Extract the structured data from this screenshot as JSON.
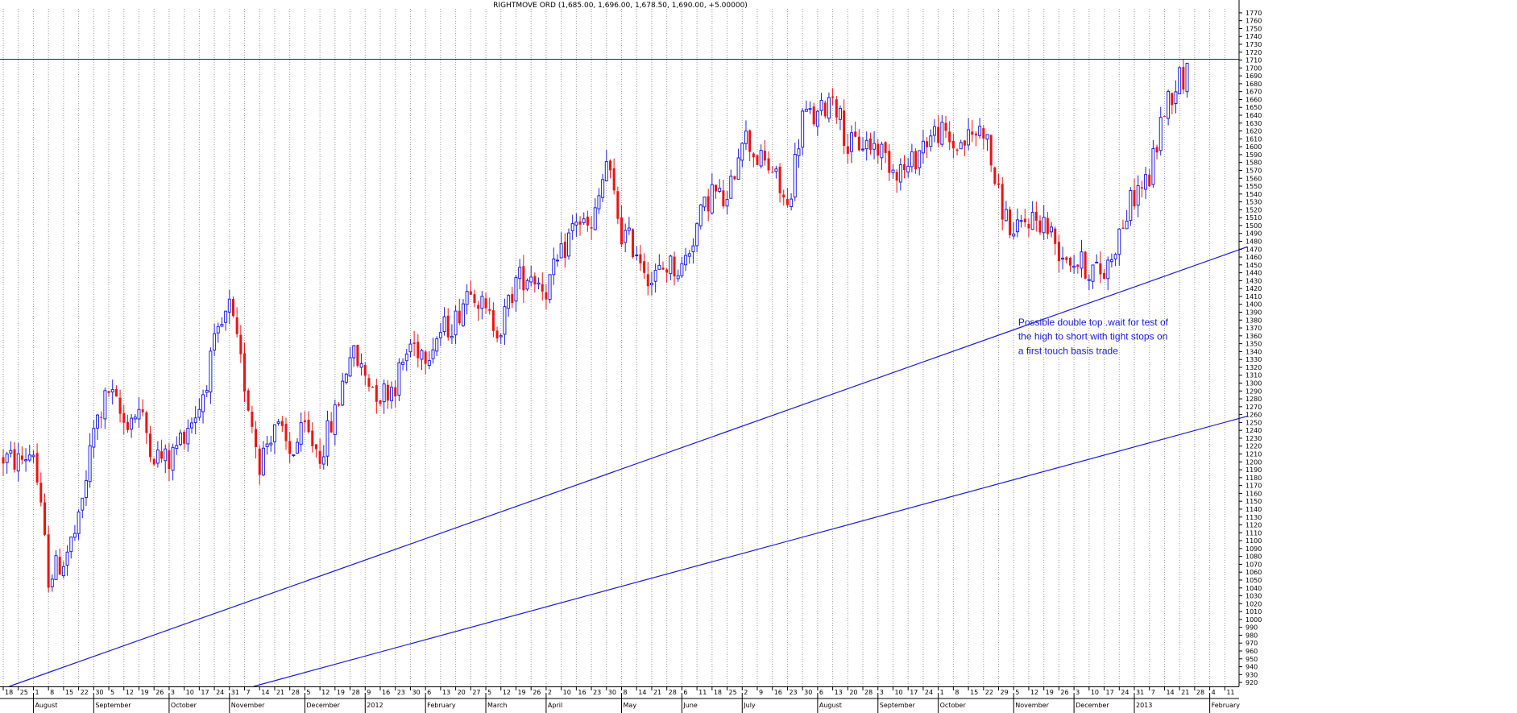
{
  "chart_data": {
    "type": "candlestick",
    "title": "RIGHTMOVE ORD (1,685.00, 1,696.00, 1,678.50, 1,690.00, +5.00000)",
    "ylim": [
      915,
      1775
    ],
    "ytick_step": 10,
    "grid": "vertical-dotted",
    "colors": {
      "up": "#1f1fe0",
      "down": "#ee1111",
      "line": "#1a1ad8",
      "axis": "#000000"
    },
    "x_ticks": [
      "18",
      "25",
      "1",
      "8",
      "15",
      "22",
      "30",
      "5",
      "12",
      "19",
      "26",
      "3",
      "10",
      "17",
      "24",
      "31",
      "7",
      "14",
      "21",
      "28",
      "5",
      "12",
      "19",
      "28",
      "9",
      "16",
      "23",
      "30",
      "6",
      "13",
      "20",
      "27",
      "5",
      "12",
      "19",
      "26",
      "2",
      "10",
      "16",
      "23",
      "30",
      "8",
      "14",
      "21",
      "28",
      "6",
      "11",
      "18",
      "25",
      "2",
      "9",
      "16",
      "23",
      "30",
      "6",
      "13",
      "20",
      "28",
      "3",
      "10",
      "17",
      "24",
      "1",
      "8",
      "15",
      "22",
      "29",
      "5",
      "12",
      "19",
      "26",
      "3",
      "10",
      "17",
      "24",
      "31",
      "7",
      "14",
      "21",
      "28",
      "4",
      "11"
    ],
    "months": [
      {
        "label": "August",
        "tick": 2
      },
      {
        "label": "September",
        "tick": 6
      },
      {
        "label": "October",
        "tick": 11
      },
      {
        "label": "November",
        "tick": 15
      },
      {
        "label": "December",
        "tick": 20
      },
      {
        "label": "2012",
        "tick": 24
      },
      {
        "label": "February",
        "tick": 28
      },
      {
        "label": "March",
        "tick": 32
      },
      {
        "label": "April",
        "tick": 36
      },
      {
        "label": "May",
        "tick": 41
      },
      {
        "label": "June",
        "tick": 45
      },
      {
        "label": "July",
        "tick": 49
      },
      {
        "label": "August",
        "tick": 54
      },
      {
        "label": "September",
        "tick": 58
      },
      {
        "label": "October",
        "tick": 62
      },
      {
        "label": "November",
        "tick": 67
      },
      {
        "label": "December",
        "tick": 71
      },
      {
        "label": "2013",
        "tick": 75
      },
      {
        "label": "February",
        "tick": 80
      }
    ],
    "price_path": [
      [
        0,
        1205
      ],
      [
        1,
        1200
      ],
      [
        2,
        1215
      ],
      [
        3,
        1055
      ],
      [
        4,
        1075
      ],
      [
        5,
        1120
      ],
      [
        6,
        1240
      ],
      [
        7,
        1290
      ],
      [
        8,
        1250
      ],
      [
        9,
        1265
      ],
      [
        10,
        1210
      ],
      [
        11,
        1200
      ],
      [
        12,
        1240
      ],
      [
        13,
        1270
      ],
      [
        14,
        1345
      ],
      [
        15,
        1395
      ],
      [
        16,
        1300
      ],
      [
        17,
        1200
      ],
      [
        18,
        1250
      ],
      [
        19,
        1210
      ],
      [
        20,
        1240
      ],
      [
        21,
        1210
      ],
      [
        22,
        1260
      ],
      [
        23,
        1340
      ],
      [
        24,
        1310
      ],
      [
        25,
        1285
      ],
      [
        26,
        1300
      ],
      [
        27,
        1350
      ],
      [
        28,
        1340
      ],
      [
        29,
        1365
      ],
      [
        30,
        1380
      ],
      [
        31,
        1430
      ],
      [
        32,
        1385
      ],
      [
        33,
        1370
      ],
      [
        34,
        1430
      ],
      [
        35,
        1440
      ],
      [
        36,
        1420
      ],
      [
        37,
        1460
      ],
      [
        38,
        1510
      ],
      [
        39,
        1490
      ],
      [
        40,
        1580
      ],
      [
        41,
        1490
      ],
      [
        42,
        1470
      ],
      [
        43,
        1430
      ],
      [
        44,
        1450
      ],
      [
        45,
        1445
      ],
      [
        46,
        1500
      ],
      [
        47,
        1545
      ],
      [
        48,
        1525
      ],
      [
        49,
        1620
      ],
      [
        50,
        1585
      ],
      [
        51,
        1570
      ],
      [
        52,
        1520
      ],
      [
        53,
        1640
      ],
      [
        54,
        1635
      ],
      [
        55,
        1670
      ],
      [
        56,
        1600
      ],
      [
        57,
        1605
      ],
      [
        58,
        1600
      ],
      [
        59,
        1575
      ],
      [
        60,
        1570
      ],
      [
        61,
        1605
      ],
      [
        62,
        1620
      ],
      [
        63,
        1600
      ],
      [
        64,
        1610
      ],
      [
        65,
        1625
      ],
      [
        66,
        1535
      ],
      [
        67,
        1485
      ],
      [
        68,
        1510
      ],
      [
        69,
        1505
      ],
      [
        70,
        1470
      ],
      [
        71,
        1455
      ],
      [
        72,
        1445
      ],
      [
        73,
        1440
      ],
      [
        74,
        1490
      ],
      [
        75,
        1540
      ],
      [
        76,
        1560
      ],
      [
        77,
        1650
      ],
      [
        78,
        1690
      ]
    ],
    "horizontal_line": 1711,
    "trendlines": [
      {
        "from": [
          0.4,
          915
        ],
        "to": [
          82.5,
          1473
        ]
      },
      {
        "from": [
          16.6,
          915
        ],
        "to": [
          82.5,
          1258
        ]
      }
    ],
    "annotations": [
      {
        "text": "Possible double top .wait for test of",
        "tick": 67.3,
        "y": 1373
      },
      {
        "text": "the high to short with tight stops on",
        "tick": 67.3,
        "y": 1355
      },
      {
        "text": "a first touch basis trade",
        "tick": 67.3,
        "y": 1337
      }
    ]
  }
}
